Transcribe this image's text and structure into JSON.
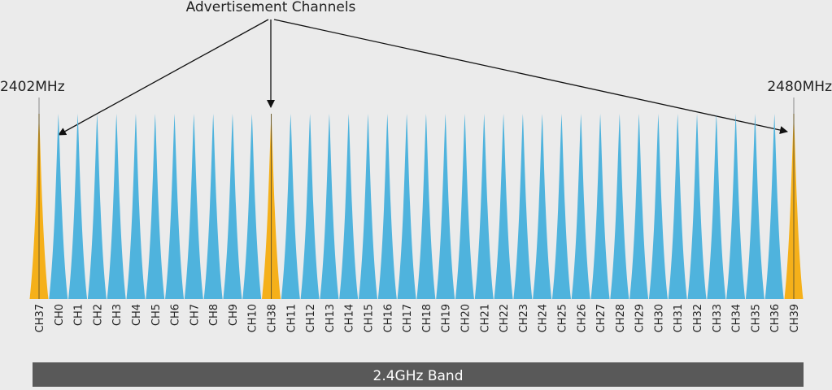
{
  "header": {
    "title": "Advertisement Channels",
    "freq_start": "2402MHz",
    "freq_end": "2480MHz"
  },
  "channels": [
    {
      "label": "CH37",
      "color": "#f5b01a"
    },
    {
      "label": "CH0",
      "color": "#4fb3dd"
    },
    {
      "label": "CH1",
      "color": "#4fb3dd"
    },
    {
      "label": "CH2",
      "color": "#4fb3dd"
    },
    {
      "label": "CH3",
      "color": "#4fb3dd"
    },
    {
      "label": "CH4",
      "color": "#4fb3dd"
    },
    {
      "label": "CH5",
      "color": "#4fb3dd"
    },
    {
      "label": "CH6",
      "color": "#4fb3dd"
    },
    {
      "label": "CH7",
      "color": "#4fb3dd"
    },
    {
      "label": "CH8",
      "color": "#4fb3dd"
    },
    {
      "label": "CH9",
      "color": "#4fb3dd"
    },
    {
      "label": "CH10",
      "color": "#4fb3dd"
    },
    {
      "label": "CH38",
      "color": "#f5b01a"
    },
    {
      "label": "CH11",
      "color": "#4fb3dd"
    },
    {
      "label": "CH12",
      "color": "#4fb3dd"
    },
    {
      "label": "CH13",
      "color": "#4fb3dd"
    },
    {
      "label": "CH14",
      "color": "#4fb3dd"
    },
    {
      "label": "CH15",
      "color": "#4fb3dd"
    },
    {
      "label": "CH16",
      "color": "#4fb3dd"
    },
    {
      "label": "CH17",
      "color": "#4fb3dd"
    },
    {
      "label": "CH18",
      "color": "#4fb3dd"
    },
    {
      "label": "CH19",
      "color": "#4fb3dd"
    },
    {
      "label": "CH20",
      "color": "#4fb3dd"
    },
    {
      "label": "CH21",
      "color": "#4fb3dd"
    },
    {
      "label": "CH22",
      "color": "#4fb3dd"
    },
    {
      "label": "CH23",
      "color": "#4fb3dd"
    },
    {
      "label": "CH24",
      "color": "#4fb3dd"
    },
    {
      "label": "CH25",
      "color": "#4fb3dd"
    },
    {
      "label": "CH26",
      "color": "#4fb3dd"
    },
    {
      "label": "CH27",
      "color": "#4fb3dd"
    },
    {
      "label": "CH28",
      "color": "#4fb3dd"
    },
    {
      "label": "CH29",
      "color": "#4fb3dd"
    },
    {
      "label": "CH30",
      "color": "#4fb3dd"
    },
    {
      "label": "CH31",
      "color": "#4fb3dd"
    },
    {
      "label": "CH32",
      "color": "#4fb3dd"
    },
    {
      "label": "CH33",
      "color": "#4fb3dd"
    },
    {
      "label": "CH34",
      "color": "#4fb3dd"
    },
    {
      "label": "CH35",
      "color": "#4fb3dd"
    },
    {
      "label": "CH36",
      "color": "#4fb3dd"
    },
    {
      "label": "CH39",
      "color": "#f5b01a"
    }
  ],
  "band_label": "2.4GHz Band"
}
